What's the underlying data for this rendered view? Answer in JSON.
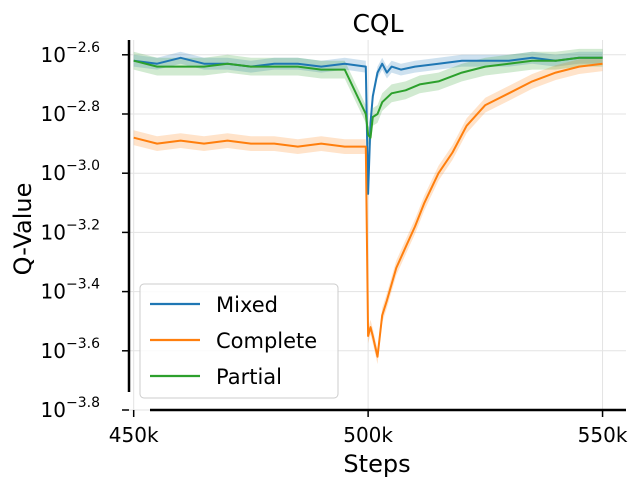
{
  "chart_data": {
    "type": "line",
    "title": "CQL",
    "xlabel": "Steps",
    "ylabel": "Q-Value",
    "xlim": [
      449000,
      555000
    ],
    "xticks": [
      450000,
      500000,
      550000
    ],
    "xtick_labels": [
      "450k",
      "500k",
      "550k"
    ],
    "ylim": [
      -3.8,
      -2.55
    ],
    "yscale": "log10",
    "yticks": [
      -2.6,
      -2.8,
      -3.0,
      -3.2,
      -3.4,
      -3.6,
      -3.8
    ],
    "ytick_bases": [
      "10",
      "10",
      "10",
      "10",
      "10",
      "10",
      "10"
    ],
    "ytick_exps": [
      "−2.6",
      "−2.8",
      "−3.0",
      "−3.2",
      "−3.4",
      "−3.6",
      "−3.8"
    ],
    "grid": true,
    "legend_position": "lower-left",
    "series": [
      {
        "name": "Mixed",
        "color": "#1f77b4",
        "band": 0.02,
        "x": [
          450000,
          455000,
          460000,
          465000,
          470000,
          475000,
          480000,
          485000,
          490000,
          495000,
          499500,
          500000,
          500500,
          501000,
          502000,
          503000,
          504000,
          505000,
          507000,
          510000,
          515000,
          520000,
          525000,
          530000,
          535000,
          540000,
          545000,
          550000
        ],
        "y": [
          -2.62,
          -2.63,
          -2.61,
          -2.63,
          -2.63,
          -2.64,
          -2.63,
          -2.63,
          -2.64,
          -2.63,
          -2.64,
          -3.07,
          -2.83,
          -2.74,
          -2.66,
          -2.63,
          -2.66,
          -2.64,
          -2.65,
          -2.64,
          -2.63,
          -2.62,
          -2.62,
          -2.62,
          -2.61,
          -2.62,
          -2.61,
          -2.61
        ]
      },
      {
        "name": "Complete",
        "color": "#ff7f0e",
        "band": 0.025,
        "x": [
          450000,
          455000,
          460000,
          465000,
          470000,
          475000,
          480000,
          485000,
          490000,
          495000,
          499500,
          500000,
          500500,
          501000,
          502000,
          503000,
          504000,
          506000,
          508000,
          510000,
          512000,
          515000,
          518000,
          521000,
          525000,
          530000,
          535000,
          540000,
          545000,
          550000
        ],
        "y": [
          -2.88,
          -2.9,
          -2.89,
          -2.9,
          -2.89,
          -2.9,
          -2.9,
          -2.91,
          -2.9,
          -2.91,
          -2.91,
          -3.55,
          -3.52,
          -3.55,
          -3.62,
          -3.48,
          -3.43,
          -3.32,
          -3.25,
          -3.18,
          -3.1,
          -3.0,
          -2.93,
          -2.84,
          -2.77,
          -2.73,
          -2.69,
          -2.66,
          -2.64,
          -2.63
        ]
      },
      {
        "name": "Partial",
        "color": "#2ca02c",
        "band": 0.03,
        "x": [
          450000,
          455000,
          460000,
          465000,
          470000,
          475000,
          480000,
          485000,
          490000,
          495000,
          499500,
          500000,
          500500,
          501000,
          502000,
          503000,
          505000,
          508000,
          511000,
          515000,
          520000,
          525000,
          530000,
          535000,
          540000,
          545000,
          550000
        ],
        "y": [
          -2.62,
          -2.64,
          -2.64,
          -2.64,
          -2.63,
          -2.64,
          -2.64,
          -2.64,
          -2.65,
          -2.65,
          -2.8,
          -2.87,
          -2.88,
          -2.81,
          -2.8,
          -2.76,
          -2.73,
          -2.72,
          -2.7,
          -2.69,
          -2.66,
          -2.64,
          -2.63,
          -2.62,
          -2.62,
          -2.61,
          -2.61
        ]
      }
    ]
  }
}
